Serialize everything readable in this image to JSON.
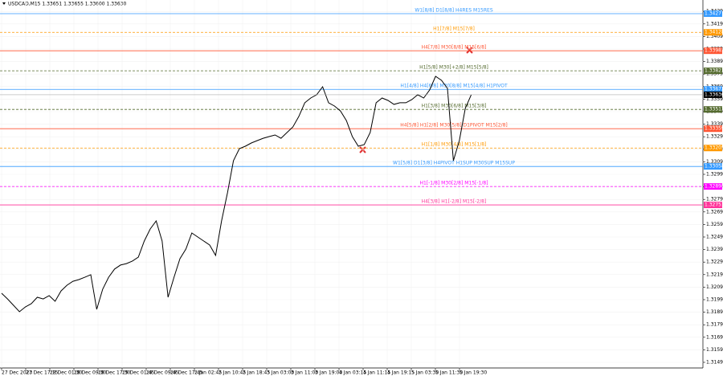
{
  "chart_data": {
    "type": "line",
    "title": "USDCAD,M15  1.33651 1.33655 1.33600 1.33630",
    "color": "#000000",
    "ylim": [
      1.31418,
      1.34386
    ],
    "yticks": [
      1.31495,
      1.31595,
      1.31695,
      1.31795,
      1.31895,
      1.31995,
      1.32095,
      1.32195,
      1.32295,
      1.32395,
      1.32495,
      1.32595,
      1.32695,
      1.32795,
      1.32895,
      1.32995,
      1.33095,
      1.33195,
      1.33295,
      1.33395,
      1.33495,
      1.33595,
      1.33695,
      1.33795,
      1.33895,
      1.33995,
      1.34095,
      1.34195,
      1.34295
    ],
    "grid": true,
    "xticks": [
      "27 Dec 2023",
      "27 Dec 17:15",
      "28 Dec 01:30",
      "28 Dec 09:30",
      "28 Dec 17:30",
      "29 Dec 01:45",
      "29 Dec 09:45",
      "29 Dec 17:45",
      "2 Jan 02:45",
      "2 Jan 10:45",
      "2 Jan 18:45",
      "3 Jan 03:00",
      "3 Jan 11:00",
      "3 Jan 19:00",
      "4 Jan 03:15",
      "4 Jan 11:15",
      "4 Jan 19:15",
      "5 Jan 03:30",
      "5 Jan 11:30",
      "5 Jan 19:30"
    ],
    "values": [
      1.32046,
      1.32001,
      1.3195,
      1.31899,
      1.31937,
      1.31963,
      1.32014,
      1.32001,
      1.32027,
      1.31982,
      1.32065,
      1.3211,
      1.32142,
      1.32155,
      1.32174,
      1.32194,
      1.31918,
      1.32078,
      1.32174,
      1.32239,
      1.32271,
      1.32283,
      1.32303,
      1.32335,
      1.32463,
      1.32559,
      1.32623,
      1.32463,
      1.32014,
      1.32174,
      1.32322,
      1.32399,
      1.32527,
      1.32495,
      1.32463,
      1.32431,
      1.32348,
      1.32623,
      1.32848,
      1.33104,
      1.332,
      1.33219,
      1.33245,
      1.33264,
      1.33283,
      1.33296,
      1.33309,
      1.33283,
      1.33328,
      1.33373,
      1.33457,
      1.33566,
      1.33604,
      1.3363,
      1.33694,
      1.33566,
      1.3354,
      1.33501,
      1.33424,
      1.33296,
      1.33219,
      1.33232,
      1.33328,
      1.33566,
      1.33604,
      1.33585,
      1.33553,
      1.33566,
      1.33566,
      1.33591,
      1.3363,
      1.33604,
      1.33668,
      1.33777,
      1.33745,
      1.33681,
      1.33104,
      1.33264,
      1.33521,
      1.3363
    ],
    "current": {
      "value": 1.3363,
      "label": "1.33630"
    },
    "levels": [
      {
        "name": "W1[8/8] D1[8/8] H4RES M15RES",
        "color": "#3399ff",
        "value": 1.34277
      },
      {
        "name": "H1[7/8] M15[7/8]",
        "color": "#ff9900",
        "value": 1.34128
      },
      {
        "name": "H4[7/8] M30[8/8] M15[6/8]",
        "color": "#ff5533",
        "value": 1.33981
      },
      {
        "name": "H1[5/8] M30[+2/8] M15[5/8]",
        "color": "#556b2f",
        "value": 1.33821
      },
      {
        "name": "H1[4/8] H4[6/8] M30[8/8] M15[4/8] H1PIVOT",
        "color": "#3399ff",
        "value": 1.33673
      },
      {
        "name": "H1[3/8] M30[6/8] M15[3/8]",
        "color": "#556b2f",
        "value": 1.33513
      },
      {
        "name": "H4[5/8] H1[2/8] M30[5/8] D1PIVOT M15[2/8]",
        "color": "#ff5533",
        "value": 1.33359
      },
      {
        "name": "H1[1/8] M30[4/8] M15[1/8]",
        "color": "#ff9900",
        "value": 1.33205
      },
      {
        "name": "W1[5/8] D1[3/8] H4PIVOT H1SUP M30SUP M15SUP",
        "color": "#3399ff",
        "value": 1.33058
      },
      {
        "name": "H1[-1/8] M30[2/8] M15[-1/8]",
        "color": "#ff00ff",
        "value": 1.32898
      },
      {
        "name": "H4[3/8] H1[-2/8] M15[-2/8]",
        "color": "#ff3399",
        "value": 1.32751
      }
    ]
  }
}
